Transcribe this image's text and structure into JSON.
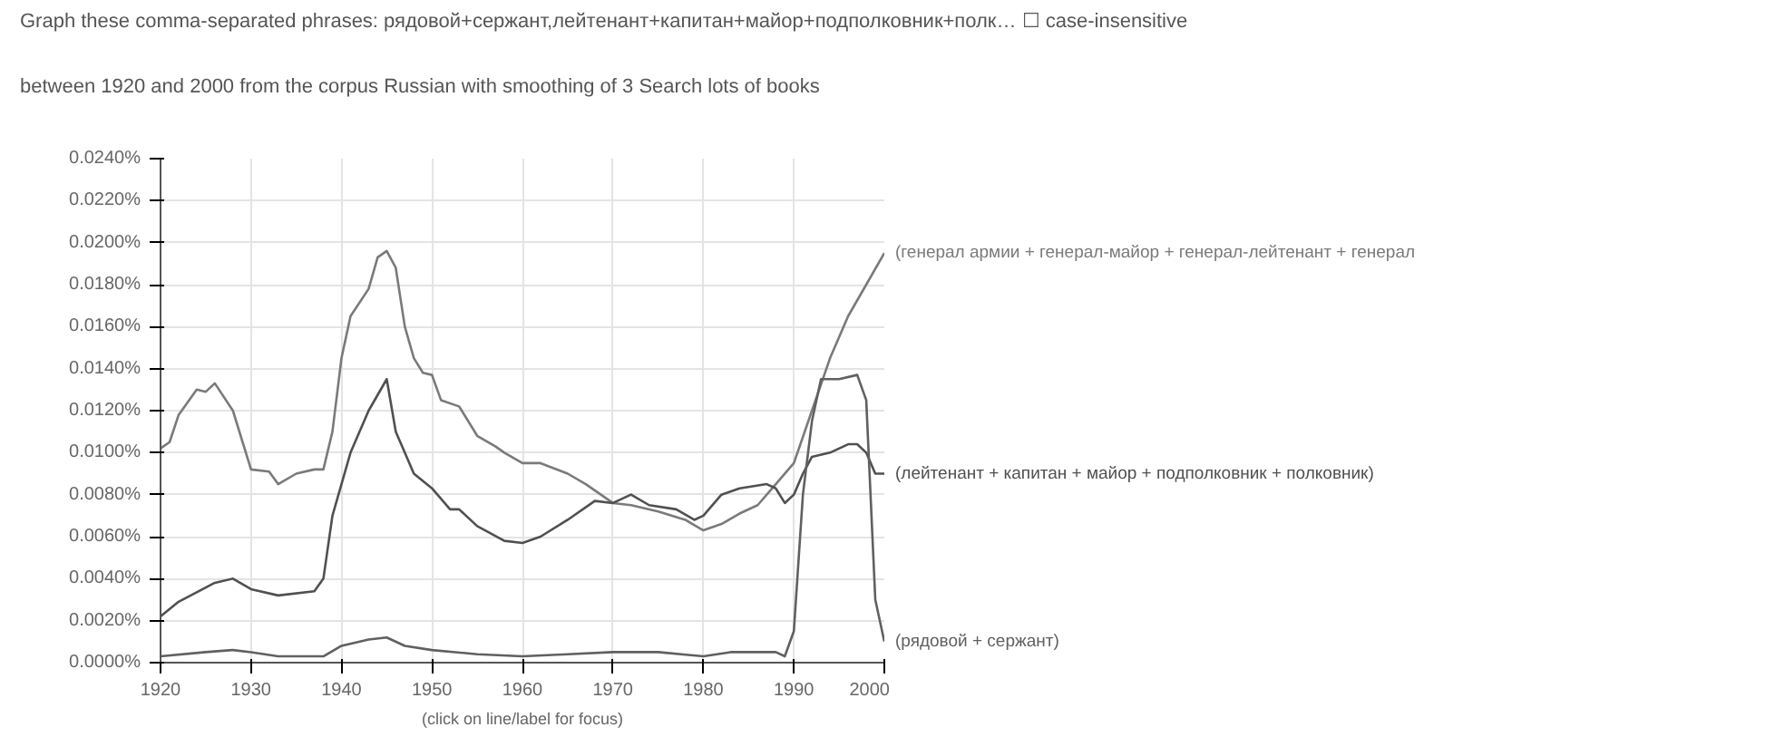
{
  "chart_data": {
    "type": "line",
    "annotations": [
      "Graph these comma-separated phrases:  рядовой+сержант,лейтенант+капитан+майор+подполковник+полк…   ☐ case-insensitive",
      "between 1920 and 2000 from the corpus Russian with smoothing of 3   Search lots of books",
      "(click on line/label for focus)"
    ],
    "series": [
      {
        "name": "(генерал армии + генерал-майор + генерал-лейтенант + генерал",
        "color": "#7a7a7a",
        "x": [
          1920,
          1921,
          1922,
          1924,
          1925,
          1926,
          1928,
          1930,
          1932,
          1933,
          1935,
          1937,
          1938,
          1939,
          1940,
          1941,
          1943,
          1944,
          1945,
          1946,
          1947,
          1948,
          1949,
          1950,
          1951,
          1953,
          1955,
          1957,
          1958,
          1960,
          1962,
          1965,
          1967,
          1970,
          1972,
          1975,
          1978,
          1980,
          1982,
          1984,
          1986,
          1988,
          1990,
          1992,
          1994,
          1996,
          1998,
          2000
        ],
        "values": [
          0.0102,
          0.0105,
          0.0118,
          0.013,
          0.0129,
          0.0133,
          0.012,
          0.0092,
          0.0091,
          0.0085,
          0.009,
          0.0092,
          0.0092,
          0.011,
          0.0145,
          0.0165,
          0.0178,
          0.0193,
          0.0196,
          0.0188,
          0.016,
          0.0145,
          0.0138,
          0.0137,
          0.0125,
          0.0122,
          0.0108,
          0.0103,
          0.01,
          0.0095,
          0.0095,
          0.009,
          0.0085,
          0.0076,
          0.0075,
          0.0072,
          0.0068,
          0.0063,
          0.0066,
          0.0071,
          0.0075,
          0.0085,
          0.0095,
          0.012,
          0.0145,
          0.0165,
          0.018,
          0.0195
        ]
      },
      {
        "name": "(лейтенант + капитан + майор + подполковник + полковник)",
        "color": "#505050",
        "x": [
          1920,
          1922,
          1926,
          1928,
          1930,
          1933,
          1937,
          1938,
          1939,
          1941,
          1943,
          1945,
          1946,
          1948,
          1950,
          1952,
          1953,
          1955,
          1958,
          1960,
          1962,
          1965,
          1968,
          1970,
          1972,
          1974,
          1977,
          1979,
          1980,
          1982,
          1984,
          1987,
          1988,
          1989,
          1990,
          1991,
          1992,
          1994,
          1996,
          1997,
          1998,
          1999,
          2000
        ],
        "values": [
          0.0022,
          0.0029,
          0.0038,
          0.004,
          0.0035,
          0.0032,
          0.0034,
          0.004,
          0.007,
          0.01,
          0.012,
          0.0135,
          0.011,
          0.009,
          0.0083,
          0.0073,
          0.0073,
          0.0065,
          0.0058,
          0.0057,
          0.006,
          0.0068,
          0.0077,
          0.0076,
          0.008,
          0.0075,
          0.0073,
          0.0068,
          0.007,
          0.008,
          0.0083,
          0.0085,
          0.0083,
          0.0076,
          0.008,
          0.009,
          0.0098,
          0.01,
          0.0104,
          0.0104,
          0.01,
          0.009,
          0.009
        ]
      },
      {
        "name": "(рядовой + сержант)",
        "color": "#606060",
        "x": [
          1920,
          1925,
          1928,
          1930,
          1933,
          1938,
          1940,
          1943,
          1945,
          1947,
          1950,
          1955,
          1960,
          1965,
          1970,
          1975,
          1980,
          1983,
          1988,
          1989,
          1990,
          1991,
          1992,
          1993,
          1995,
          1997,
          1998,
          1999,
          2000
        ],
        "values": [
          0.0003,
          0.0005,
          0.0006,
          0.0005,
          0.0003,
          0.0003,
          0.0008,
          0.0011,
          0.0012,
          0.0008,
          0.0006,
          0.0004,
          0.0003,
          0.0004,
          0.0005,
          0.0005,
          0.0003,
          0.0005,
          0.0005,
          0.0003,
          0.0015,
          0.008,
          0.0115,
          0.0135,
          0.0135,
          0.0137,
          0.0125,
          0.003,
          0.001
        ]
      }
    ],
    "xlim": [
      1920,
      2000
    ],
    "xticks": [
      1920,
      1930,
      1940,
      1950,
      1960,
      1970,
      1980,
      1990,
      2000
    ],
    "ylim": [
      0,
      0.024
    ],
    "yticks": [
      {
        "value": 0,
        "label": "0.0000%"
      },
      {
        "value": 0.002,
        "label": "0.0020%"
      },
      {
        "value": 0.004,
        "label": "0.0040%"
      },
      {
        "value": 0.006,
        "label": "0.0060%"
      },
      {
        "value": 0.008,
        "label": "0.0080%"
      },
      {
        "value": 0.01,
        "label": "0.0100%"
      },
      {
        "value": 0.012,
        "label": "0.0120%"
      },
      {
        "value": 0.014,
        "label": "0.0140%"
      },
      {
        "value": 0.016,
        "label": "0.0160%"
      },
      {
        "value": 0.018,
        "label": "0.0180%"
      },
      {
        "value": 0.02,
        "label": "0.0200%"
      },
      {
        "value": 0.022,
        "label": "0.0220%"
      },
      {
        "value": 0.024,
        "label": "0.0240%"
      }
    ],
    "grid": true,
    "legend": false,
    "marker": "none",
    "line_style": "solid"
  }
}
